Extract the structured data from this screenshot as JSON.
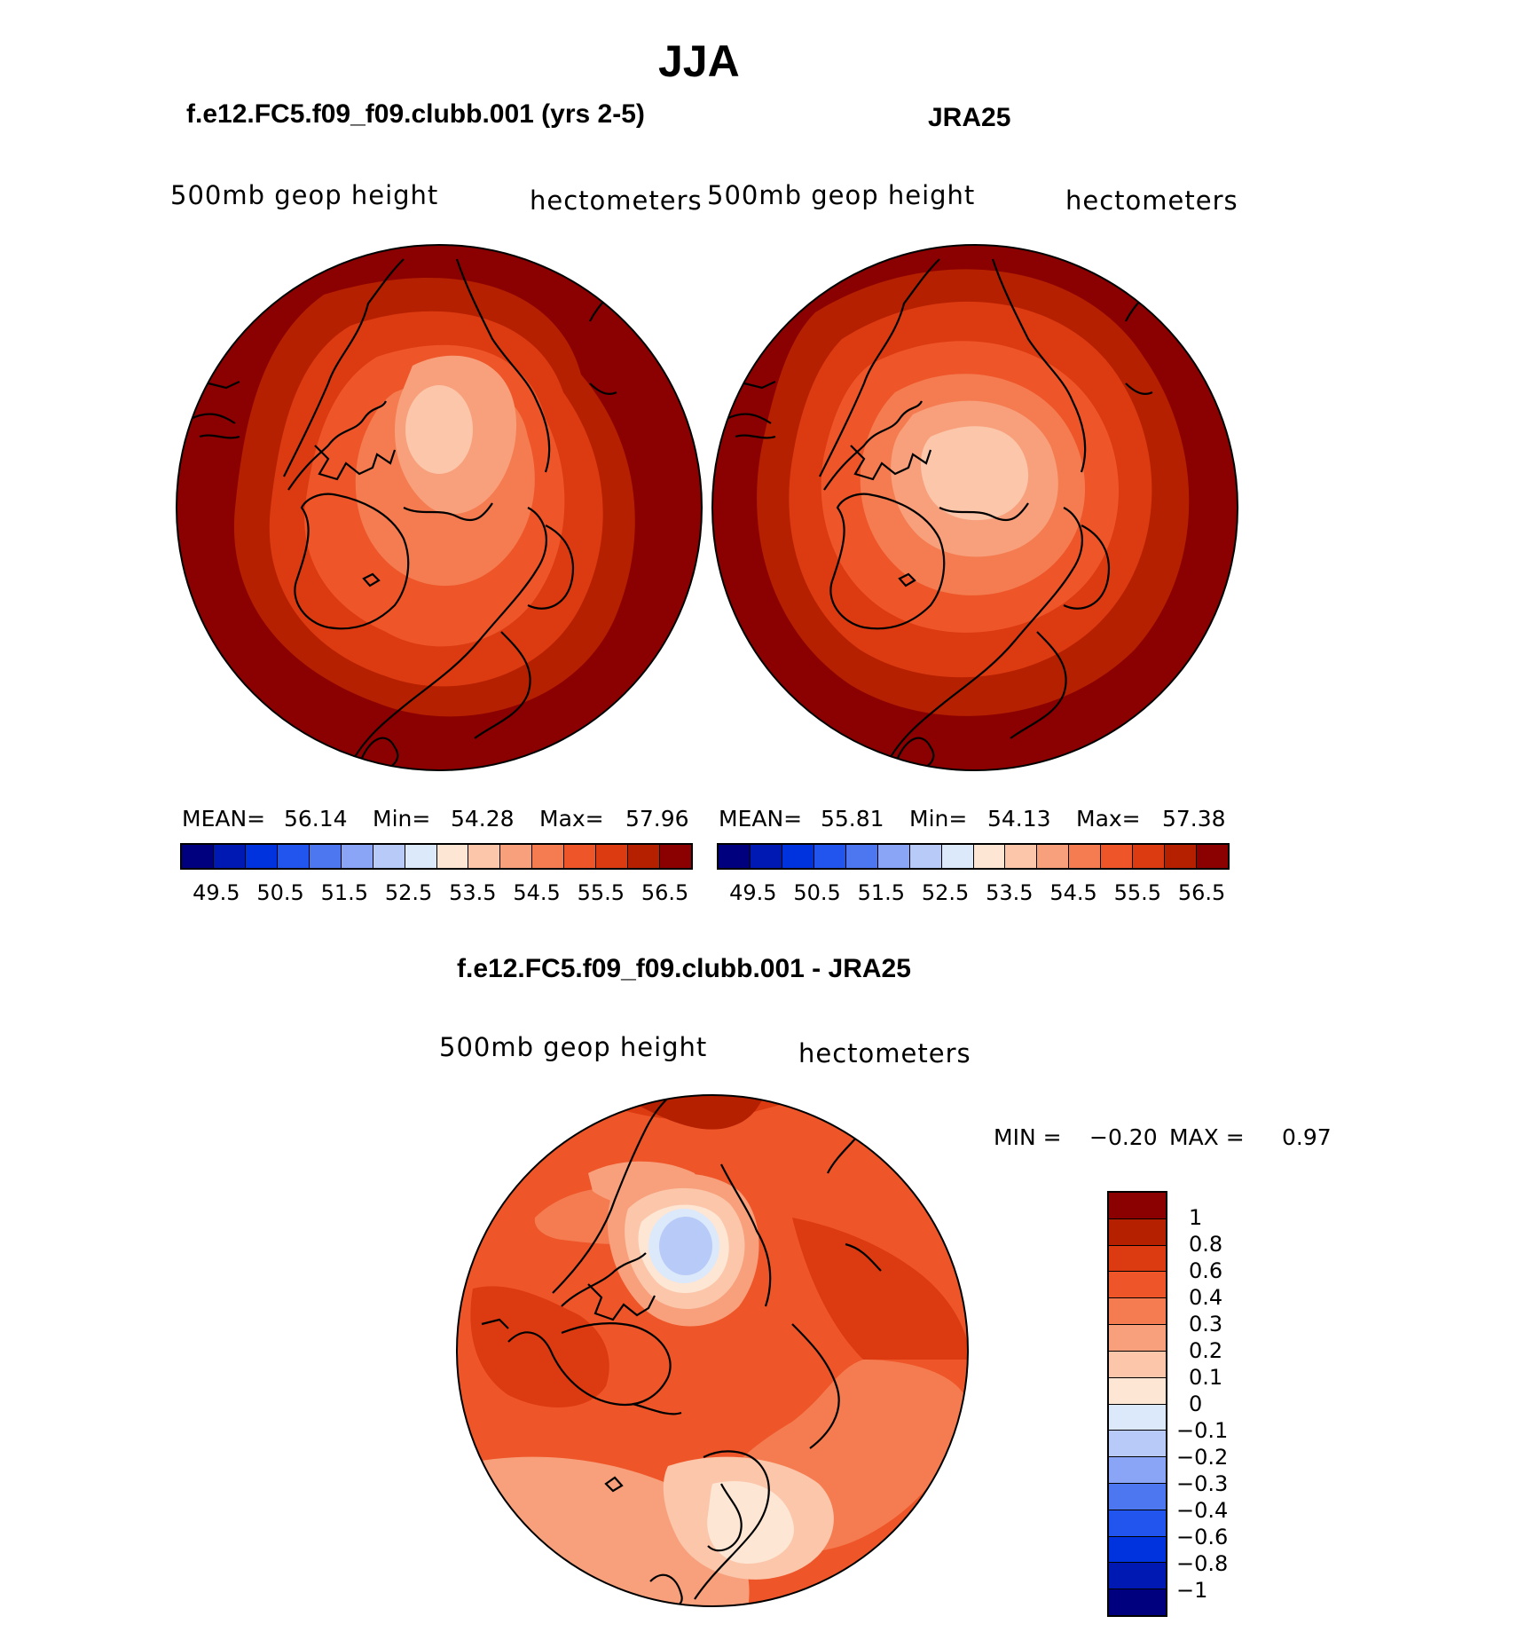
{
  "title": "JJA",
  "panels": [
    {
      "id": "model",
      "heading": "f.e12.FC5.f09_f09.clubb.001 (yrs 2-5)",
      "variable": "500mb  geop  height",
      "units": "hectometers",
      "mean_label": "MEAN=",
      "mean": "56.14",
      "min_label": "Min=",
      "min": "54.28",
      "max_label": "Max=",
      "max": "57.96"
    },
    {
      "id": "obs",
      "heading": "JRA25",
      "variable": "500mb  geop  height",
      "units": "hectometers",
      "mean_label": "MEAN=",
      "mean": "55.81",
      "min_label": "Min=",
      "min": "54.13",
      "max_label": "Max=",
      "max": "57.38"
    }
  ],
  "absolute_colorbar": {
    "colors": [
      "#00007f",
      "#0019b3",
      "#0033dd",
      "#2255ee",
      "#4d77f0",
      "#8aa5f5",
      "#b8caf8",
      "#dce9fb",
      "#fde6d4",
      "#fbc6aa",
      "#f8a07c",
      "#f47c50",
      "#ee5528",
      "#dc3a10",
      "#b42000",
      "#8b0000"
    ],
    "tick_labels": [
      "49.5",
      "50.5",
      "51.5",
      "52.5",
      "53.5",
      "54.5",
      "55.5",
      "56.5"
    ]
  },
  "difference": {
    "heading": "f.e12.FC5.f09_f09.clubb.001 - JRA25",
    "variable": "500mb  geop  height",
    "units": "hectometers",
    "min_label": "MIN =",
    "min": "−0.20",
    "max_label": "MAX =",
    "max": "0.97",
    "colorbar": {
      "colors": [
        "#8b0000",
        "#b42000",
        "#dc3a10",
        "#ee5528",
        "#f47c50",
        "#f8a07c",
        "#fbc6aa",
        "#fde6d4",
        "#dce9fb",
        "#b8caf8",
        "#8aa5f5",
        "#4d77f0",
        "#2255ee",
        "#0033dd",
        "#0019b3",
        "#00007f"
      ],
      "tick_labels": [
        "1",
        "0.8",
        "0.6",
        "0.4",
        "0.3",
        "0.2",
        "0.1",
        "0",
        "−0.1",
        "−0.2",
        "−0.3",
        "−0.4",
        "−0.6",
        "−0.8",
        "−1"
      ]
    }
  }
}
